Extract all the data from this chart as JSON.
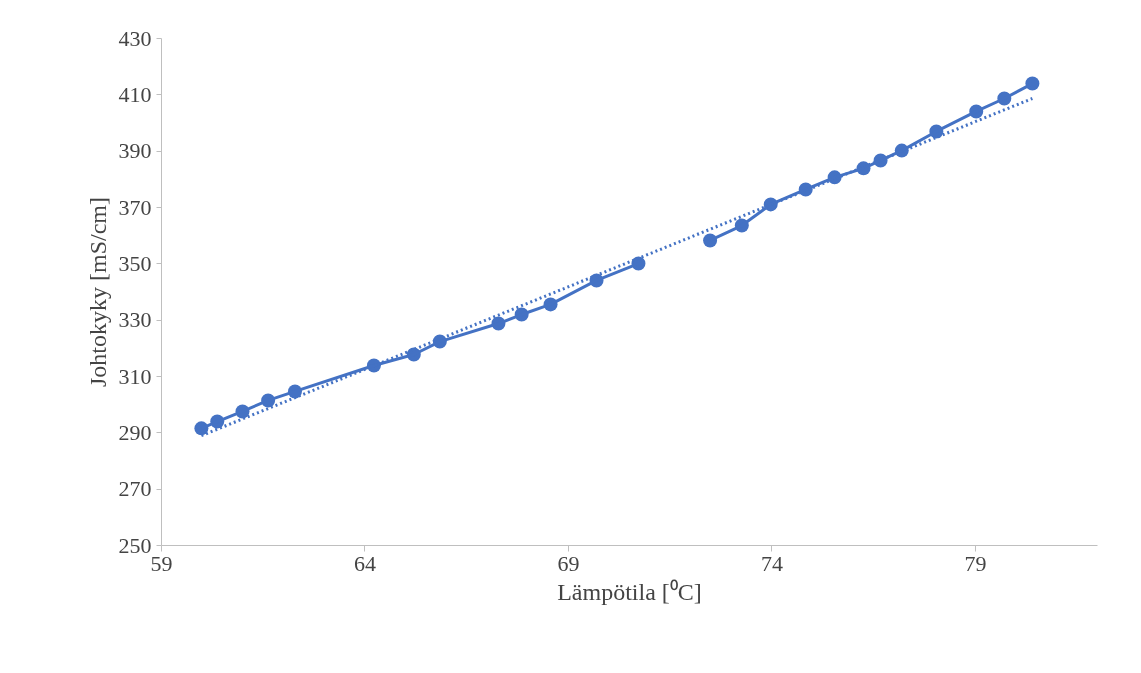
{
  "chart_data": {
    "type": "line",
    "xlabel": "Lämpötila [⁰C]",
    "ylabel": "Johtokyky [mS/cm]",
    "xlim": [
      59,
      82
    ],
    "ylim": [
      250,
      430
    ],
    "xticks": [
      59,
      64,
      69,
      74,
      79
    ],
    "yticks": [
      250,
      270,
      290,
      310,
      330,
      350,
      370,
      390,
      410,
      430
    ],
    "grid": false,
    "series": [
      {
        "marker": "circle",
        "line_style": "solid",
        "color": "#4472c4",
        "x": [
          59.98,
          60.37,
          60.99,
          61.62,
          62.28,
          64.22,
          65.2,
          65.84,
          67.28,
          67.85,
          68.56,
          69.69,
          70.72,
          71.6,
          72.48,
          73.26,
          73.97,
          74.83,
          75.54,
          76.25,
          76.67,
          77.19,
          78.04,
          79.02,
          79.71,
          80.4
        ],
        "values": [
          291.6,
          294.0,
          297.6,
          301.5,
          304.7,
          313.9,
          317.8,
          322.4,
          328.8,
          332.0,
          335.6,
          344.1,
          350.1,
          null,
          358.3,
          363.6,
          371.1,
          376.4,
          380.7,
          383.9,
          386.7,
          390.2,
          397.0,
          404.1,
          408.7,
          414.0
        ]
      },
      {
        "marker": "none",
        "line_style": "dotted",
        "color": "#4472c4",
        "x": [
          59.98,
          80.4
        ],
        "values": [
          289.0,
          408.7
        ]
      }
    ]
  }
}
